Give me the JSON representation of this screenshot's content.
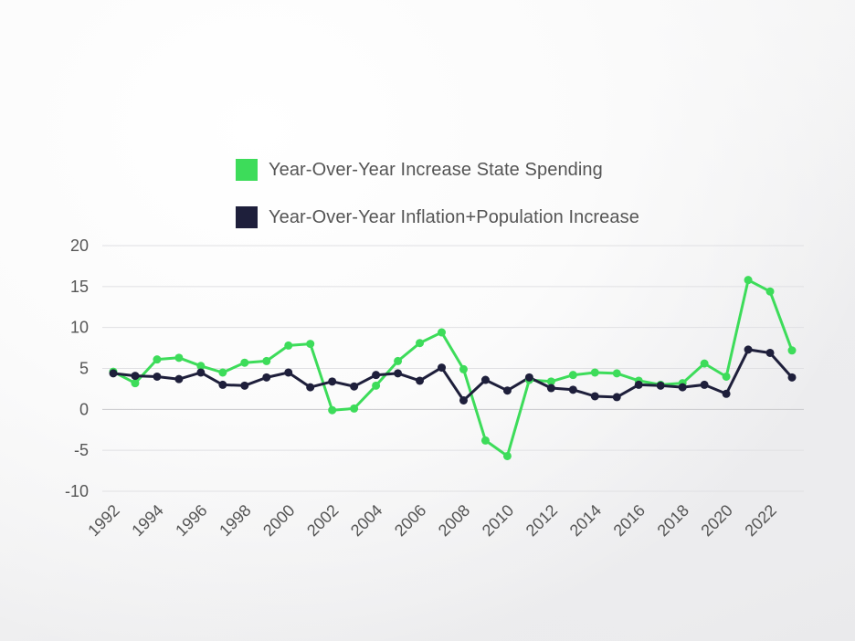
{
  "chart_data": {
    "type": "line",
    "x": [
      1992,
      1993,
      1994,
      1995,
      1996,
      1997,
      1998,
      1999,
      2000,
      2001,
      2002,
      2003,
      2004,
      2005,
      2006,
      2007,
      2008,
      2009,
      2010,
      2011,
      2012,
      2013,
      2014,
      2015,
      2016,
      2017,
      2018,
      2019,
      2020,
      2021,
      2022,
      2023
    ],
    "x_tick_labels": [
      "1992",
      "1994",
      "1996",
      "1998",
      "2000",
      "2002",
      "2004",
      "2006",
      "2008",
      "2010",
      "2012",
      "2014",
      "2016",
      "2018",
      "2020",
      "2022"
    ],
    "series": [
      {
        "name": "Year-Over-Year Increase State Spending",
        "color": "#3ddc5a",
        "values": [
          4.6,
          3.2,
          6.1,
          6.3,
          5.3,
          4.5,
          5.7,
          5.9,
          7.8,
          8.0,
          -0.1,
          0.1,
          2.9,
          5.9,
          8.1,
          9.4,
          4.9,
          -3.8,
          -5.7,
          3.6,
          3.4,
          4.2,
          4.5,
          4.4,
          3.5,
          3.0,
          3.2,
          5.6,
          4.0,
          15.8,
          14.4,
          7.2
        ]
      },
      {
        "name": "Year-Over-Year Inflation+Population Increase",
        "color": "#1e1f3b",
        "values": [
          4.4,
          4.1,
          4.0,
          3.7,
          4.5,
          3.0,
          2.9,
          3.9,
          4.5,
          2.7,
          3.4,
          2.8,
          4.2,
          4.4,
          3.5,
          5.1,
          1.1,
          3.6,
          2.3,
          3.9,
          2.6,
          2.4,
          1.6,
          1.5,
          3.0,
          2.9,
          2.7,
          3.0,
          1.9,
          7.3,
          6.9,
          3.9
        ]
      }
    ],
    "ylim": [
      -10,
      20
    ],
    "y_ticks": [
      -10,
      -5,
      0,
      5,
      10,
      15,
      20
    ],
    "grid": true,
    "legend_position": "top"
  }
}
